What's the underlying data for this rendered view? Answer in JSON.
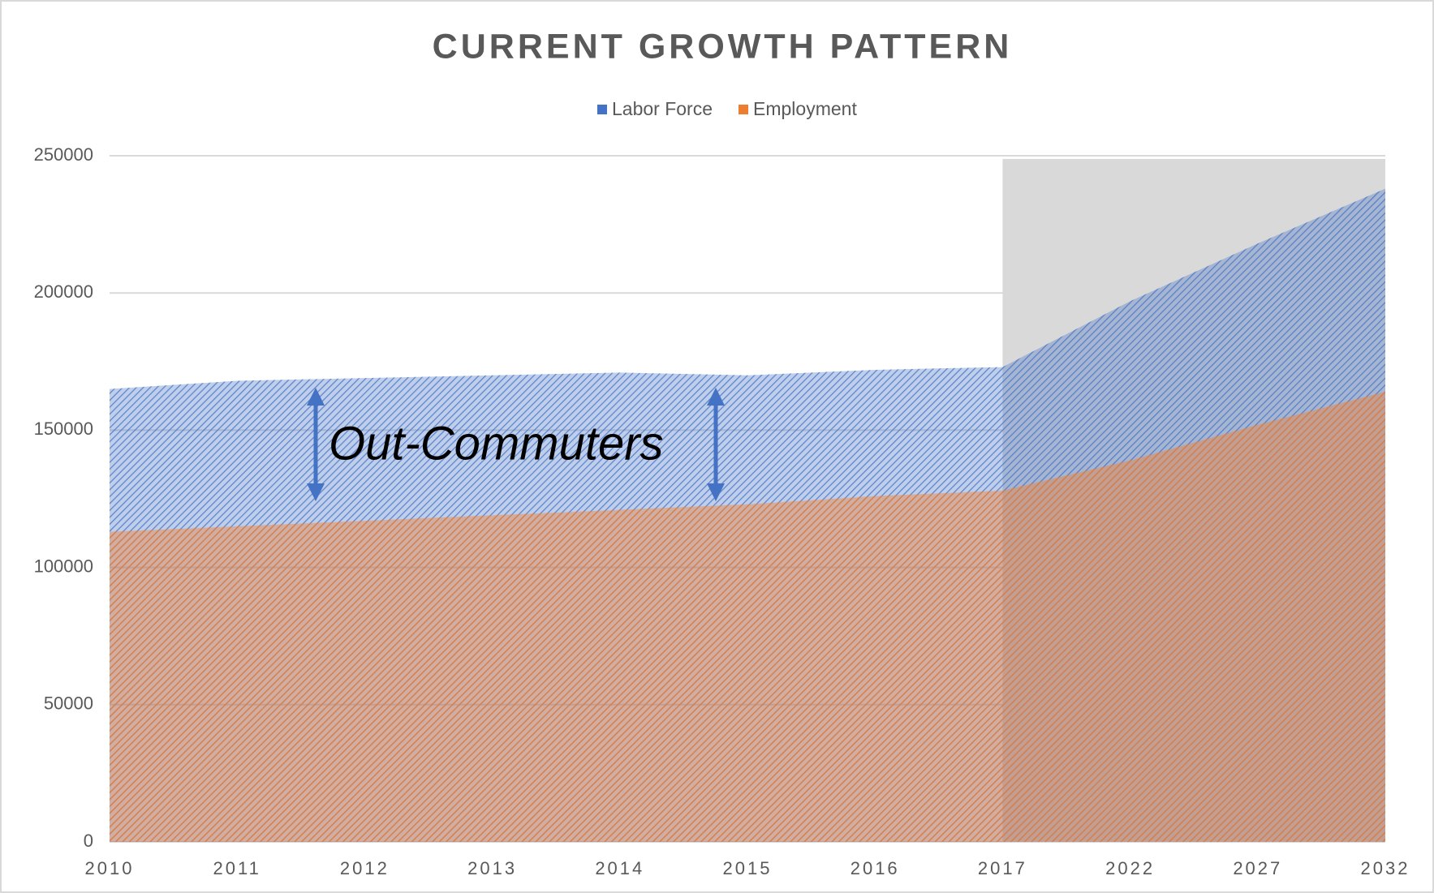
{
  "chart_data": {
    "type": "area",
    "title": "CURRENT GROWTH PATTERN",
    "categories": [
      "2010",
      "2011",
      "2012",
      "2013",
      "2014",
      "2015",
      "2016",
      "2017",
      "2022",
      "2027",
      "2032"
    ],
    "series": [
      {
        "name": "Labor Force",
        "color": "#4472c4",
        "values": [
          165000,
          168000,
          169000,
          170000,
          171000,
          170000,
          172000,
          173000,
          197000,
          218000,
          238000
        ]
      },
      {
        "name": "Employment",
        "color": "#ed7d31",
        "values": [
          113000,
          115000,
          117000,
          119000,
          121000,
          123000,
          126000,
          128000,
          139000,
          152000,
          164000
        ]
      }
    ],
    "ylim": [
      0,
      250000
    ],
    "yticks": [
      0,
      50000,
      100000,
      150000,
      200000,
      250000
    ],
    "grid": true,
    "legend": "top",
    "annotations": [
      "Out-Commuters"
    ]
  }
}
